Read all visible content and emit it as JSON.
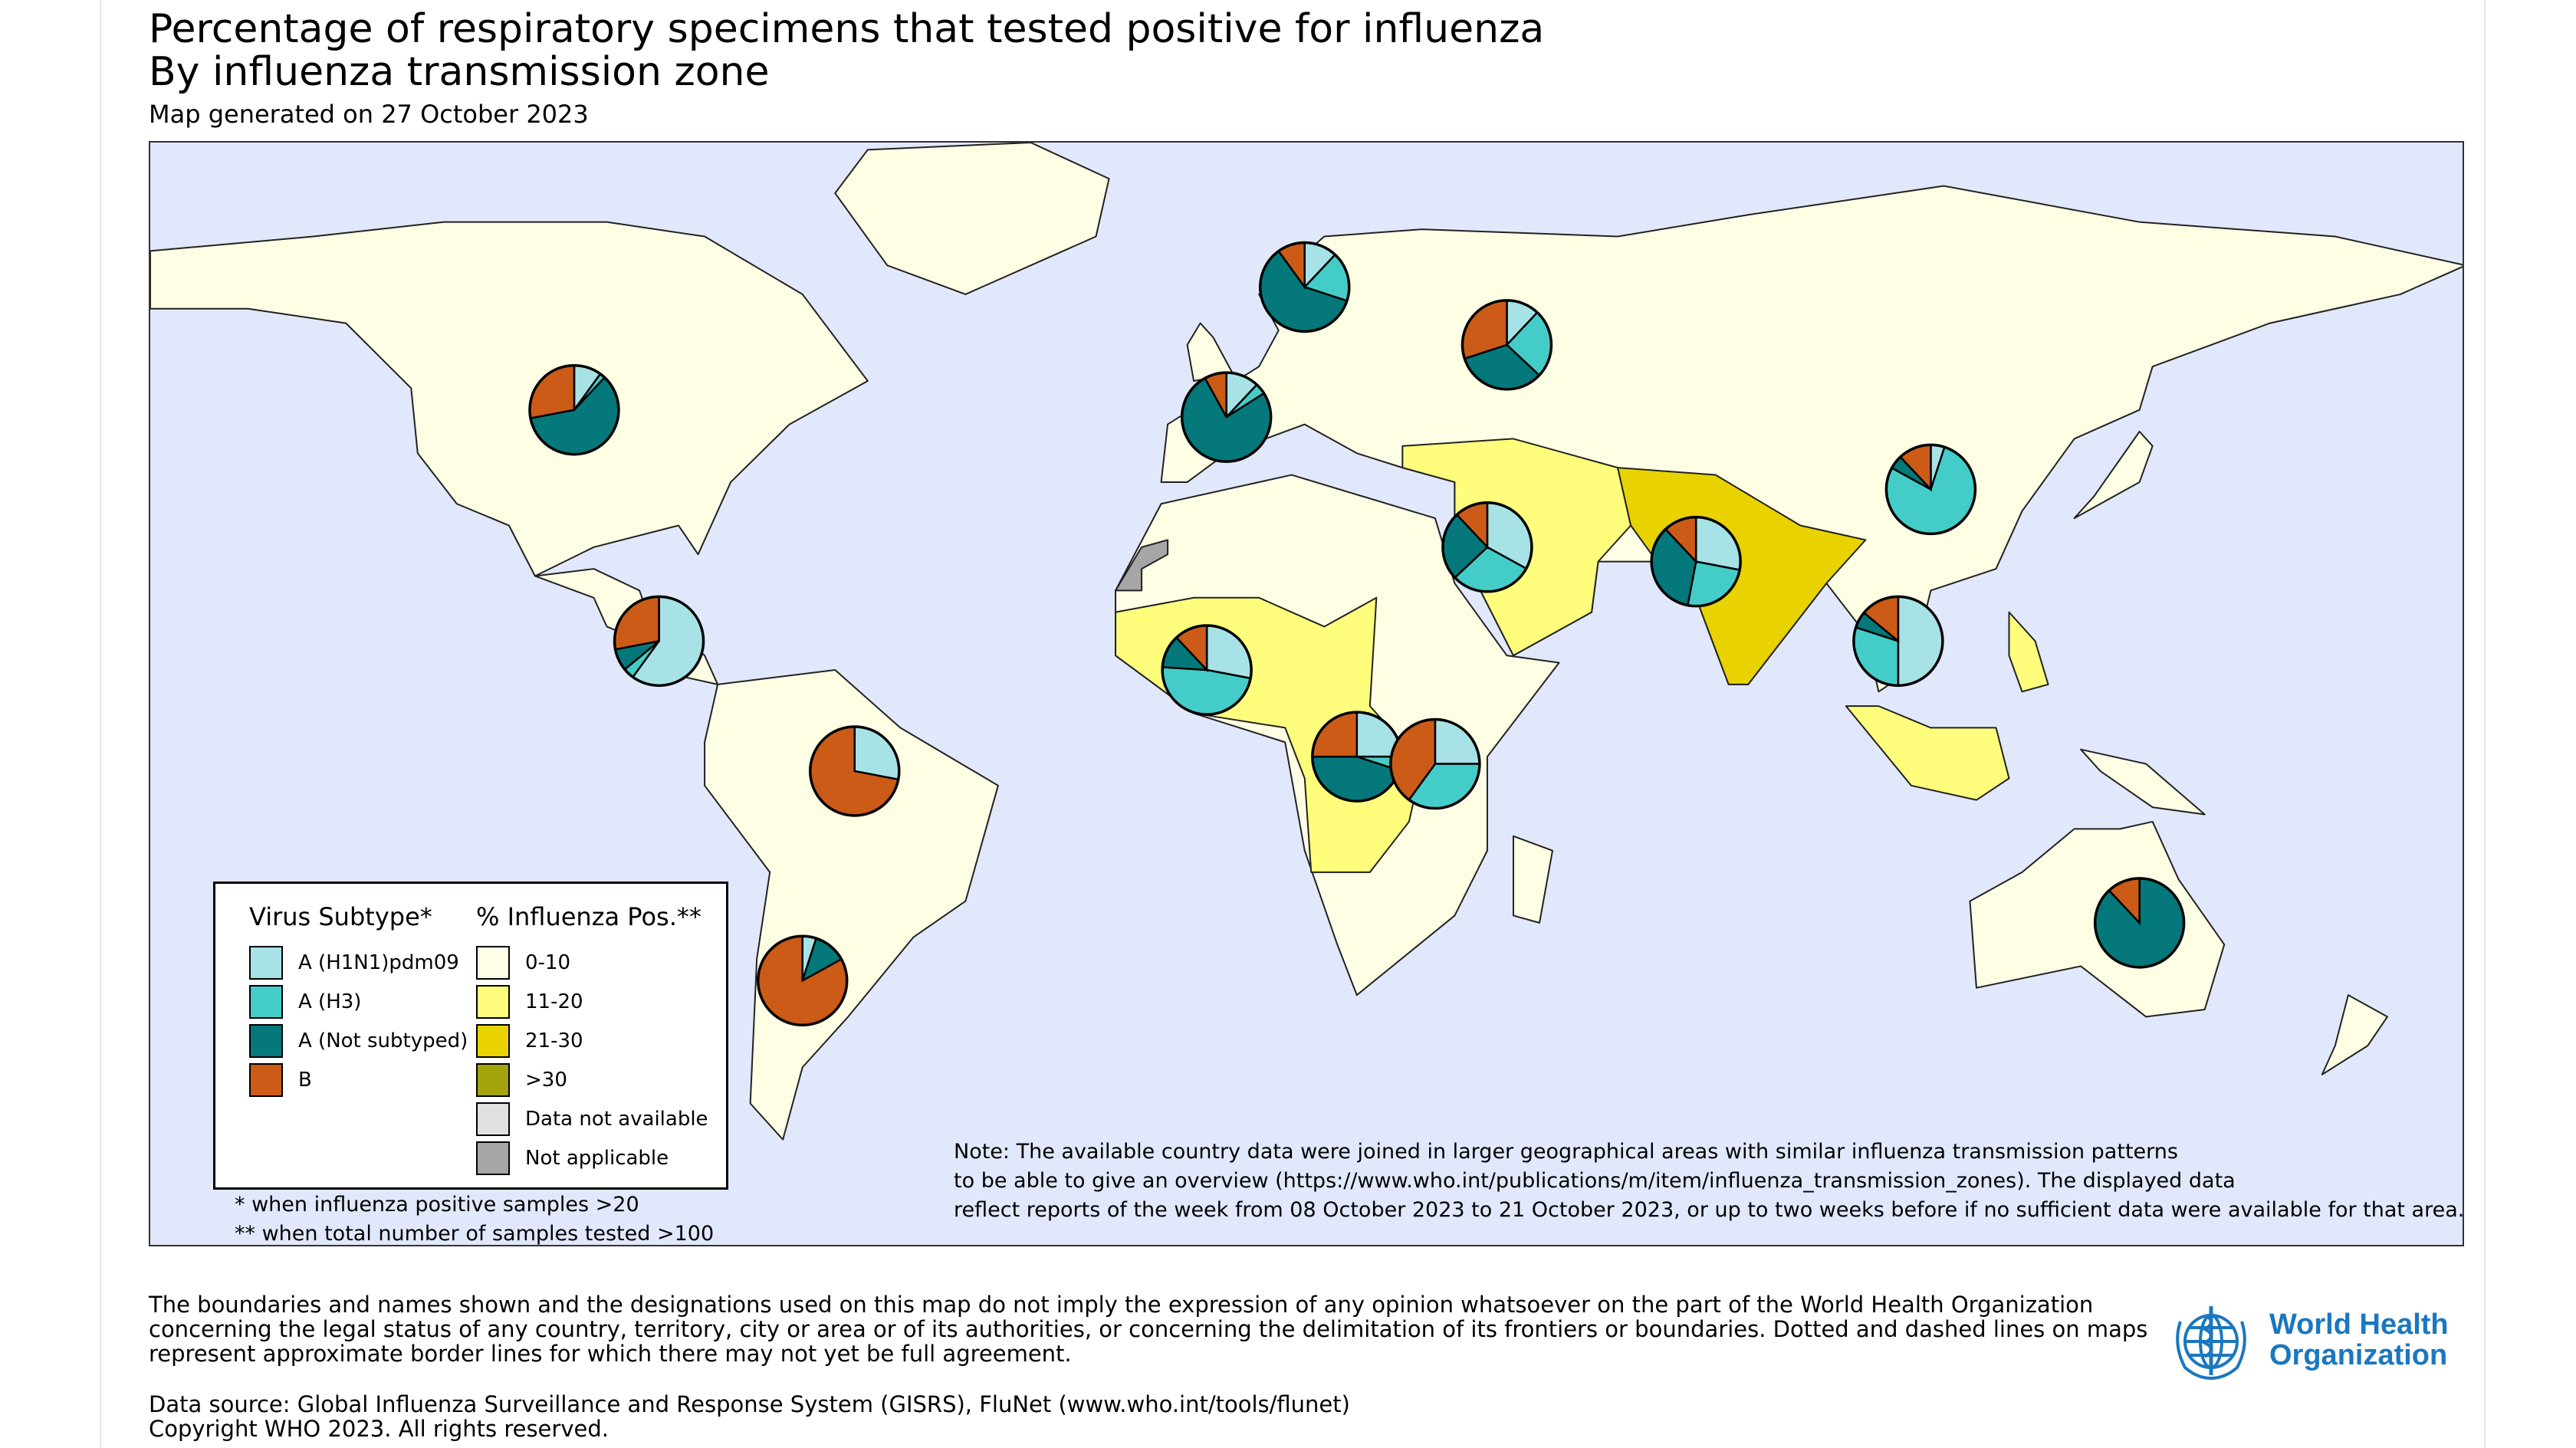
{
  "header": {
    "title_line1": "Percentage of respiratory specimens that tested positive for influenza",
    "title_line2": "By influenza transmission zone",
    "subtitle": "Map generated on 27 October 2023"
  },
  "colors": {
    "ocean": "#e1e8fb",
    "pct_0_10": "#fefee5",
    "pct_11_20": "#fefe7c",
    "pct_21_30": "#e8d300",
    "pct_gt_30": "#a3a30c",
    "not_available": "#e0e0e0",
    "not_applicable": "#a6a6a6",
    "h1n1": "#a7e3e6",
    "h3": "#44cdc8",
    "a_not_subtyped": "#04787a",
    "b": "#cc5b17"
  },
  "legend": {
    "virus_heading": "Virus Subtype*",
    "pct_heading": "% Influenza Pos.**",
    "virus_items": [
      {
        "label": "A (H1N1)pdm09",
        "color": "#a7e3e6"
      },
      {
        "label": "A (H3)",
        "color": "#44cdc8"
      },
      {
        "label": "A (Not subtyped)",
        "color": "#04787a"
      },
      {
        "label": "B",
        "color": "#cc5b17"
      }
    ],
    "pct_items": [
      {
        "label": "0-10",
        "color": "#fefee5"
      },
      {
        "label": "11-20",
        "color": "#fefe7c"
      },
      {
        "label": "21-30",
        "color": "#e8d300"
      },
      {
        "label": ">30",
        "color": "#a3a30c"
      },
      {
        "label": "Data not available",
        "color": "#e0e0e0"
      },
      {
        "label": "Not applicable",
        "color": "#a6a6a6"
      }
    ]
  },
  "footnotes": {
    "one": "* when influenza positive samples >20",
    "two": "** when total number of samples tested >100"
  },
  "note_lines": [
    "Note: The available country data were joined in larger geographical areas with similar influenza transmission patterns",
    "to be able to give an overview (https://www.who.int/publications/m/item/influenza_transmission_zones). The displayed data",
    "reflect reports of the week from 08 October 2023 to 21 October 2023, or up to two weeks before if no sufficient data were available for that area."
  ],
  "disclaimer_lines": [
    "The boundaries and names shown and the designations used on this map do not imply the expression of any opinion whatsoever on the part of the World Health Organization",
    "concerning the legal status of any country, territory, city or area or of its authorities, or concerning the delimitation of its frontiers or boundaries. Dotted and dashed lines on maps",
    "represent approximate border lines for which there may not yet be full agreement."
  ],
  "source_lines": [
    "Data source: Global Influenza Surveillance and Response System (GISRS), FluNet (www.who.int/tools/flunet)",
    "Copyright WHO 2023. All rights reserved."
  ],
  "logo": {
    "line1": "World Health",
    "line2": "Organization"
  },
  "pies": [
    {
      "id": "north-america",
      "lon": -100,
      "lat": 46,
      "shares": [
        0.1,
        0.02,
        0.6,
        0.28
      ]
    },
    {
      "id": "central-america",
      "lon": -87,
      "lat": 14,
      "shares": [
        0.6,
        0.04,
        0.08,
        0.28
      ]
    },
    {
      "id": "tropical-south-america",
      "lon": -57,
      "lat": -4,
      "shares": [
        0.28,
        0.0,
        0.0,
        0.72
      ]
    },
    {
      "id": "temperate-south-america",
      "lon": -65,
      "lat": -33,
      "shares": [
        0.05,
        0.0,
        0.12,
        0.83
      ]
    },
    {
      "id": "northern-europe",
      "lon": 12,
      "lat": 63,
      "shares": [
        0.12,
        0.18,
        0.6,
        0.1
      ]
    },
    {
      "id": "south-west-europe",
      "lon": 0,
      "lat": 45,
      "shares": [
        0.12,
        0.04,
        0.76,
        0.08
      ]
    },
    {
      "id": "eastern-europe",
      "lon": 43,
      "lat": 55,
      "shares": [
        0.12,
        0.25,
        0.33,
        0.3
      ]
    },
    {
      "id": "western-asia",
      "lon": 40,
      "lat": 27,
      "shares": [
        0.33,
        0.3,
        0.25,
        0.12
      ]
    },
    {
      "id": "southern-asia",
      "lon": 72,
      "lat": 25,
      "shares": [
        0.28,
        0.25,
        0.35,
        0.12
      ]
    },
    {
      "id": "eastern-asia",
      "lon": 108,
      "lat": 35,
      "shares": [
        0.05,
        0.78,
        0.05,
        0.12
      ]
    },
    {
      "id": "south-east-asia",
      "lon": 103,
      "lat": 14,
      "shares": [
        0.5,
        0.3,
        0.06,
        0.14
      ]
    },
    {
      "id": "western-africa",
      "lon": -3,
      "lat": 10,
      "shares": [
        0.28,
        0.48,
        0.12,
        0.12
      ]
    },
    {
      "id": "middle-africa",
      "lon": 20,
      "lat": -2,
      "shares": [
        0.25,
        0.05,
        0.45,
        0.25
      ]
    },
    {
      "id": "eastern-africa",
      "lon": 32,
      "lat": -3,
      "shares": [
        0.25,
        0.35,
        0.0,
        0.4
      ]
    },
    {
      "id": "oceania",
      "lon": 140,
      "lat": -25,
      "shares": [
        0.0,
        0.0,
        0.88,
        0.12
      ]
    }
  ]
}
